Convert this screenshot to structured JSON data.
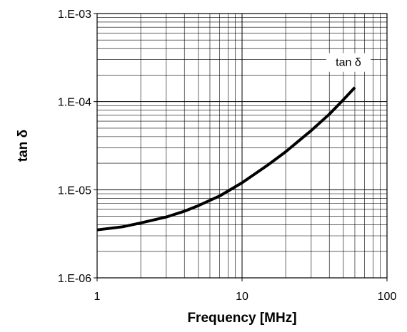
{
  "chart_data": {
    "type": "line",
    "title": "",
    "xlabel": "Frequency [MHz]",
    "ylabel": "tan δ",
    "x_scale": "log",
    "y_scale": "log",
    "xlim": [
      1,
      100
    ],
    "ylim": [
      1e-06,
      0.001
    ],
    "x_tick_labels": [
      "1",
      "10",
      "100"
    ],
    "y_tick_labels": [
      "1.E-06",
      "1.E-05",
      "1.E-04",
      "1.E-03"
    ],
    "grid": true,
    "series": [
      {
        "name": "tan δ",
        "color": "#000000",
        "x": [
          1,
          1.5,
          2,
          3,
          4,
          5,
          7,
          10,
          15,
          20,
          30,
          40,
          50,
          60
        ],
        "y": [
          3.5e-06,
          3.8e-06,
          4.2e-06,
          4.9e-06,
          5.7e-06,
          6.6e-06,
          8.5e-06,
          1.2e-05,
          1.9e-05,
          2.7e-05,
          4.7e-05,
          7.2e-05,
          0.000105,
          0.000145
        ]
      }
    ]
  }
}
